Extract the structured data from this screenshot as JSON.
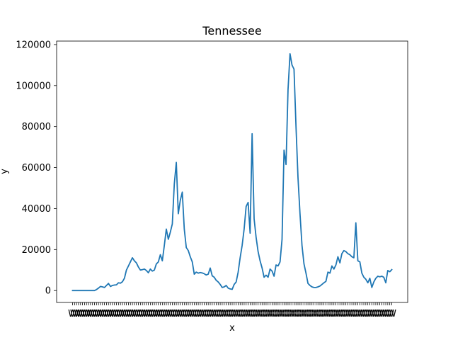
{
  "chart_data": {
    "type": "line",
    "title": "Tennessee",
    "xlabel": "x",
    "ylabel": "y",
    "ylim": [
      -5800,
      121700
    ],
    "y_ticks": [
      0,
      20000,
      40000,
      60000,
      80000,
      100000,
      120000
    ],
    "y_tick_labels": [
      "0",
      "20000",
      "40000",
      "60000",
      "80000",
      "100000",
      "120000"
    ],
    "grid": false,
    "legend": "none",
    "line_color": "#1f77b4",
    "x_tick_note": "dense overlapping category tick labels (one per data point, illegible)",
    "series": [
      {
        "values": [
          0,
          0,
          0,
          0,
          0,
          0,
          0,
          0,
          0,
          0,
          0,
          0,
          500,
          1200,
          2000,
          1800,
          1500,
          2500,
          3500,
          2000,
          2500,
          2700,
          2800,
          3800,
          3600,
          4300,
          6000,
          10000,
          12000,
          14000,
          16000,
          14500,
          13500,
          11500,
          10000,
          10200,
          10500,
          9800,
          8700,
          10500,
          9500,
          10000,
          13000,
          14000,
          17500,
          14500,
          22000,
          30000,
          25000,
          28500,
          32500,
          52000,
          62500,
          37500,
          44000,
          48000,
          30000,
          21000,
          19500,
          16500,
          14000,
          8000,
          9000,
          8500,
          8800,
          8600,
          8200,
          7600,
          8000,
          11000,
          7200,
          6500,
          5000,
          4200,
          3000,
          1500,
          1800,
          2500,
          1200,
          800,
          600,
          3000,
          4200,
          9000,
          16000,
          22000,
          30000,
          41000,
          43000,
          28000,
          76500,
          35000,
          26000,
          19000,
          14500,
          11000,
          6500,
          7500,
          6500,
          10500,
          9500,
          7000,
          12500,
          12000,
          14000,
          25000,
          68500,
          61500,
          98000,
          115500,
          110000,
          108000,
          80000,
          55000,
          37500,
          22000,
          13000,
          8500,
          3500,
          2500,
          1800,
          1500,
          1500,
          1800,
          2200,
          3000,
          3800,
          4500,
          9000,
          8500,
          12000,
          10500,
          12500,
          16500,
          13500,
          18000,
          19500,
          19000,
          18000,
          17500,
          16500,
          16000,
          33000,
          14500,
          14000,
          8500,
          6500,
          5500,
          3800,
          6000,
          1500,
          4200,
          6000,
          7000,
          6700,
          7000,
          6500,
          3800,
          9800,
          9200,
          10200
        ]
      }
    ]
  }
}
